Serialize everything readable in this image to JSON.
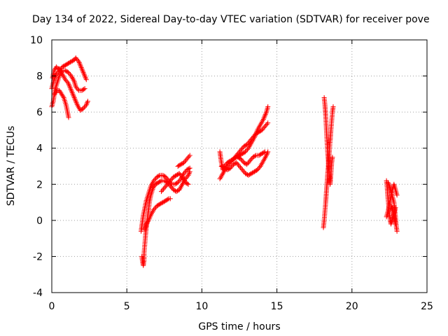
{
  "chart_data": {
    "type": "scatter",
    "title": "Day 134 of 2022, Sidereal Day-to-day VTEC variation (SDTVAR) for receiver pove",
    "xlabel": "GPS time / hours",
    "ylabel": "SDTVAR / TECUs",
    "xlim": [
      0,
      25
    ],
    "ylim": [
      -4,
      10
    ],
    "x_ticks": [
      "0",
      "5",
      "10",
      "15",
      "20",
      "25"
    ],
    "y_ticks": [
      "-4",
      "-2",
      "0",
      "2",
      "4",
      "6",
      "8",
      "10"
    ],
    "grid": true,
    "marker": "+",
    "series": [
      {
        "name": "SDTVAR",
        "color": "#ff0000",
        "tracks": [
          [
            [
              0.0,
              7.3
            ],
            [
              0.15,
              7.8
            ],
            [
              0.3,
              8.1
            ],
            [
              0.5,
              8.3
            ],
            [
              0.7,
              8.5
            ],
            [
              0.9,
              8.6
            ],
            [
              1.1,
              8.7
            ],
            [
              1.3,
              8.8
            ],
            [
              1.5,
              8.9
            ],
            [
              1.6,
              9.0
            ],
            [
              1.8,
              8.8
            ],
            [
              2.0,
              8.4
            ],
            [
              2.2,
              8.0
            ],
            [
              2.3,
              7.8
            ]
          ],
          [
            [
              0.0,
              6.3
            ],
            [
              0.1,
              6.6
            ],
            [
              0.2,
              7.2
            ],
            [
              0.35,
              7.6
            ],
            [
              0.5,
              8.0
            ],
            [
              0.7,
              8.3
            ],
            [
              0.9,
              8.3
            ],
            [
              1.1,
              8.2
            ],
            [
              1.3,
              8.0
            ],
            [
              1.5,
              7.7
            ],
            [
              1.6,
              7.4
            ],
            [
              1.8,
              7.2
            ],
            [
              2.0,
              7.2
            ],
            [
              2.2,
              7.3
            ]
          ],
          [
            [
              0.2,
              7.0
            ],
            [
              0.35,
              7.2
            ],
            [
              0.5,
              7.2
            ],
            [
              0.65,
              7.0
            ],
            [
              0.8,
              6.8
            ],
            [
              0.95,
              6.4
            ],
            [
              1.05,
              6.0
            ],
            [
              1.12,
              5.7
            ]
          ],
          [
            [
              0.5,
              8.4
            ],
            [
              0.7,
              8.1
            ],
            [
              0.9,
              7.8
            ],
            [
              1.1,
              7.6
            ],
            [
              1.3,
              7.2
            ],
            [
              1.5,
              6.8
            ],
            [
              1.7,
              6.4
            ],
            [
              1.9,
              6.1
            ],
            [
              2.1,
              6.2
            ],
            [
              2.3,
              6.4
            ],
            [
              2.4,
              6.6
            ]
          ],
          [
            [
              0.05,
              7.9
            ],
            [
              0.15,
              8.3
            ],
            [
              0.3,
              8.5
            ],
            [
              0.45,
              8.4
            ]
          ],
          [
            [
              6.0,
              -2.0
            ],
            [
              6.05,
              -2.3
            ],
            [
              6.1,
              -2.5
            ],
            [
              6.15,
              -2.2
            ],
            [
              6.15,
              -1.8
            ],
            [
              6.2,
              -1.3
            ],
            [
              6.25,
              -0.8
            ],
            [
              6.3,
              -0.4
            ],
            [
              6.35,
              -0.1
            ],
            [
              6.4,
              0.3
            ],
            [
              6.45,
              0.6
            ],
            [
              6.5,
              1.0
            ],
            [
              6.6,
              1.4
            ],
            [
              6.75,
              1.8
            ],
            [
              6.9,
              2.0
            ],
            [
              7.1,
              2.1
            ],
            [
              7.3,
              2.2
            ],
            [
              7.5,
              2.2
            ],
            [
              7.7,
              2.1
            ],
            [
              7.9,
              1.9
            ],
            [
              8.1,
              1.7
            ],
            [
              8.3,
              1.6
            ],
            [
              8.5,
              1.7
            ],
            [
              8.7,
              2.0
            ],
            [
              8.9,
              2.3
            ],
            [
              9.1,
              2.5
            ],
            [
              9.2,
              2.7
            ]
          ],
          [
            [
              5.95,
              -0.6
            ],
            [
              6.0,
              -0.3
            ],
            [
              6.05,
              0.0
            ],
            [
              6.1,
              0.3
            ],
            [
              6.2,
              0.7
            ],
            [
              6.3,
              1.1
            ],
            [
              6.45,
              1.5
            ],
            [
              6.6,
              1.9
            ],
            [
              6.8,
              2.2
            ],
            [
              7.0,
              2.4
            ],
            [
              7.2,
              2.5
            ],
            [
              7.4,
              2.5
            ],
            [
              7.6,
              2.4
            ],
            [
              7.8,
              2.2
            ],
            [
              8.0,
              2.0
            ],
            [
              8.2,
              2.0
            ],
            [
              8.4,
              2.1
            ],
            [
              8.6,
              2.3
            ],
            [
              8.8,
              2.6
            ],
            [
              9.0,
              2.8
            ],
            [
              9.2,
              2.9
            ]
          ],
          [
            [
              6.2,
              -0.5
            ],
            [
              6.3,
              -0.2
            ],
            [
              6.45,
              0.0
            ],
            [
              6.6,
              0.3
            ],
            [
              6.8,
              0.6
            ],
            [
              7.0,
              0.8
            ],
            [
              7.2,
              0.9
            ],
            [
              7.4,
              1.0
            ],
            [
              7.6,
              1.1
            ],
            [
              7.8,
              1.2
            ],
            [
              7.9,
              1.2
            ]
          ],
          [
            [
              7.3,
              1.6
            ],
            [
              7.5,
              1.8
            ],
            [
              7.7,
              2.0
            ],
            [
              7.9,
              2.2
            ],
            [
              8.1,
              2.4
            ],
            [
              8.3,
              2.5
            ],
            [
              8.5,
              2.6
            ],
            [
              8.7,
              2.4
            ],
            [
              8.9,
              2.1
            ],
            [
              9.1,
              2.0
            ]
          ],
          [
            [
              8.4,
              3.0
            ],
            [
              8.6,
              3.1
            ],
            [
              8.8,
              3.2
            ],
            [
              9.0,
              3.4
            ],
            [
              9.2,
              3.6
            ]
          ],
          [
            [
              11.2,
              3.8
            ],
            [
              11.3,
              3.2
            ],
            [
              11.4,
              2.8
            ],
            [
              11.5,
              3.0
            ],
            [
              11.7,
              3.2
            ],
            [
              11.9,
              3.3
            ],
            [
              12.1,
              3.4
            ],
            [
              12.3,
              3.5
            ],
            [
              12.5,
              3.6
            ],
            [
              12.7,
              3.7
            ],
            [
              12.9,
              3.8
            ],
            [
              13.1,
              4.0
            ],
            [
              13.3,
              4.3
            ],
            [
              13.5,
              4.6
            ],
            [
              13.7,
              5.0
            ],
            [
              13.9,
              5.3
            ],
            [
              14.1,
              5.6
            ],
            [
              14.3,
              6.0
            ],
            [
              14.4,
              6.3
            ]
          ],
          [
            [
              11.2,
              2.3
            ],
            [
              11.4,
              2.6
            ],
            [
              11.6,
              2.9
            ],
            [
              11.8,
              3.1
            ],
            [
              12.0,
              3.3
            ],
            [
              12.2,
              3.5
            ],
            [
              12.4,
              3.7
            ],
            [
              12.6,
              3.9
            ],
            [
              12.8,
              4.1
            ],
            [
              13.0,
              4.2
            ],
            [
              13.2,
              4.4
            ],
            [
              13.4,
              4.6
            ],
            [
              13.6,
              4.8
            ],
            [
              13.8,
              4.9
            ],
            [
              14.0,
              5.0
            ],
            [
              14.2,
              5.2
            ],
            [
              14.4,
              5.4
            ]
          ],
          [
            [
              11.3,
              3.0
            ],
            [
              11.5,
              2.9
            ],
            [
              11.7,
              2.8
            ],
            [
              11.9,
              2.9
            ],
            [
              12.1,
              3.1
            ],
            [
              12.3,
              3.2
            ],
            [
              12.5,
              3.0
            ],
            [
              12.7,
              2.8
            ],
            [
              12.9,
              2.6
            ],
            [
              13.1,
              2.5
            ],
            [
              13.3,
              2.6
            ],
            [
              13.5,
              2.7
            ],
            [
              13.7,
              2.8
            ],
            [
              13.9,
              3.0
            ],
            [
              14.1,
              3.3
            ],
            [
              14.3,
              3.6
            ],
            [
              14.4,
              3.8
            ]
          ],
          [
            [
              12.4,
              3.5
            ],
            [
              12.6,
              3.4
            ],
            [
              12.8,
              3.2
            ],
            [
              13.0,
              3.1
            ],
            [
              13.2,
              3.3
            ],
            [
              13.4,
              3.5
            ],
            [
              13.6,
              3.6
            ],
            [
              13.8,
              3.6
            ],
            [
              14.0,
              3.7
            ],
            [
              14.2,
              3.8
            ]
          ],
          [
            [
              18.1,
              -0.4
            ],
            [
              18.15,
              0.0
            ],
            [
              18.2,
              0.5
            ],
            [
              18.25,
              1.0
            ],
            [
              18.3,
              1.6
            ],
            [
              18.35,
              2.2
            ],
            [
              18.4,
              2.8
            ],
            [
              18.45,
              3.3
            ],
            [
              18.5,
              3.9
            ],
            [
              18.55,
              4.4
            ],
            [
              18.6,
              5.0
            ],
            [
              18.65,
              5.5
            ],
            [
              18.7,
              6.0
            ],
            [
              18.75,
              6.3
            ]
          ],
          [
            [
              18.15,
              6.8
            ],
            [
              18.2,
              6.4
            ],
            [
              18.25,
              5.8
            ],
            [
              18.3,
              5.0
            ],
            [
              18.35,
              4.2
            ],
            [
              18.4,
              3.5
            ],
            [
              18.45,
              3.0
            ],
            [
              18.5,
              2.5
            ],
            [
              18.55,
              2.0
            ],
            [
              18.6,
              2.6
            ],
            [
              18.65,
              3.2
            ],
            [
              18.7,
              3.5
            ]
          ],
          [
            [
              22.3,
              2.2
            ],
            [
              22.35,
              1.8
            ],
            [
              22.4,
              1.2
            ],
            [
              22.45,
              0.8
            ],
            [
              22.5,
              0.3
            ],
            [
              22.55,
              0.0
            ],
            [
              22.6,
              -0.2
            ],
            [
              22.7,
              0.1
            ],
            [
              22.8,
              0.4
            ],
            [
              22.9,
              0.7
            ]
          ],
          [
            [
              22.3,
              0.2
            ],
            [
              22.4,
              0.5
            ],
            [
              22.5,
              0.9
            ],
            [
              22.6,
              1.3
            ],
            [
              22.7,
              1.7
            ],
            [
              22.8,
              2.0
            ],
            [
              22.9,
              1.7
            ],
            [
              23.0,
              1.4
            ]
          ],
          [
            [
              22.4,
              2.1
            ],
            [
              22.5,
              1.9
            ],
            [
              22.6,
              1.6
            ],
            [
              22.7,
              1.3
            ],
            [
              22.8,
              1.0
            ],
            [
              22.85,
              0.6
            ],
            [
              22.9,
              0.2
            ],
            [
              22.95,
              -0.3
            ],
            [
              23.0,
              -0.6
            ]
          ],
          [
            [
              22.6,
              0.8
            ],
            [
              22.7,
              0.6
            ],
            [
              22.8,
              0.3
            ],
            [
              22.85,
              0.0
            ],
            [
              22.9,
              -0.2
            ]
          ]
        ]
      }
    ]
  }
}
